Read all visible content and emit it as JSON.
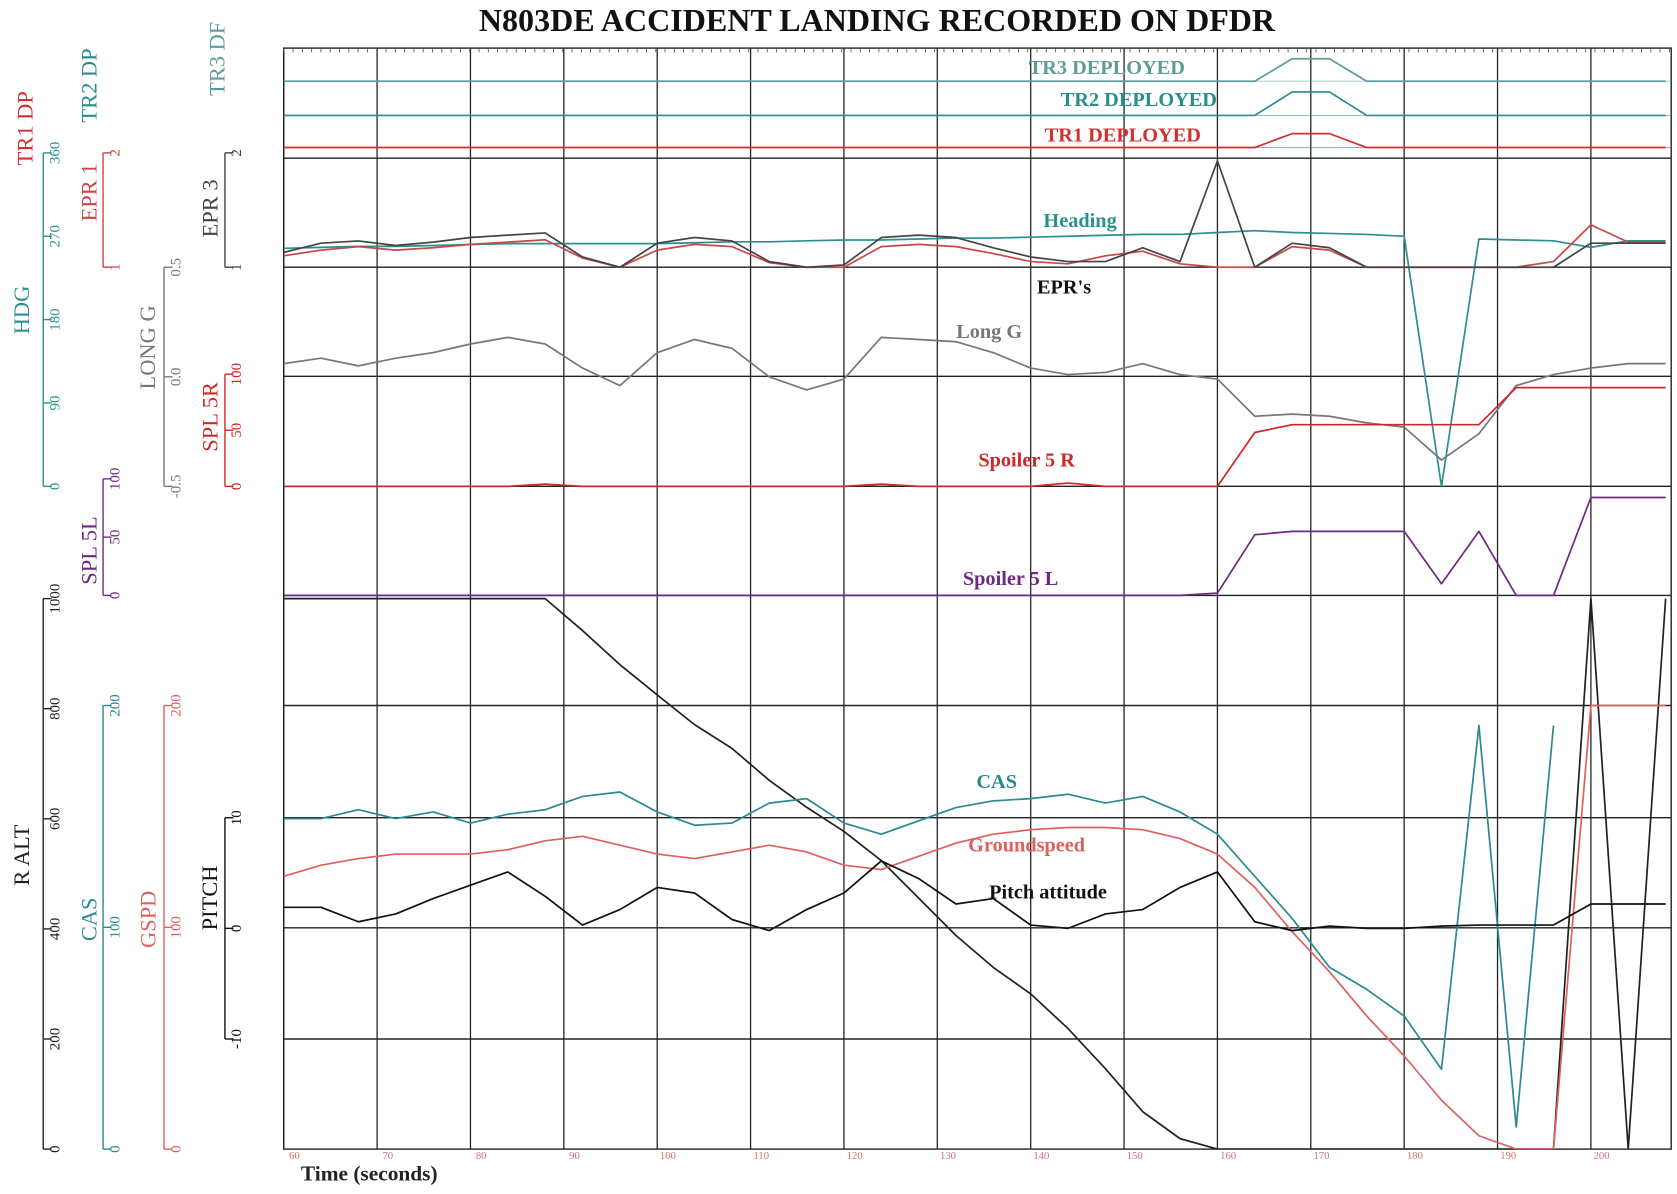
{
  "chart_data": {
    "type": "line",
    "title": "N803DE ACCIDENT LANDING RECORDED ON DFDR",
    "xlabel": "Time (seconds)",
    "xlim": [
      60,
      208.6
    ],
    "xticks": [
      60,
      70,
      80,
      90,
      100,
      110,
      120,
      130,
      140,
      150,
      160,
      170,
      180,
      190,
      200
    ],
    "grid": true,
    "annotations": [
      "EPR's"
    ],
    "x": [
      60,
      64,
      68,
      72,
      76,
      80,
      84,
      88,
      92,
      96,
      100,
      104,
      108,
      112,
      116,
      120,
      124,
      128,
      132,
      136,
      140,
      144,
      148,
      152,
      156,
      160,
      164,
      168,
      172,
      176,
      180,
      184,
      188,
      192,
      196,
      200,
      204,
      208
    ],
    "series": [
      {
        "name": "TR3 DEPLOYED",
        "axis_label": "TR3 DF",
        "color": "#5e9c9c",
        "ylim": [
          0,
          1
        ],
        "values": [
          0,
          0,
          0,
          0,
          0,
          0,
          0,
          0,
          0,
          0,
          0,
          0,
          0,
          0,
          0,
          0,
          0,
          0,
          0,
          0,
          0,
          0,
          0,
          0,
          0,
          0,
          0,
          1,
          1,
          0,
          0,
          0,
          0,
          0,
          0,
          0,
          0,
          0
        ]
      },
      {
        "name": "TR2 DEPLOYED",
        "axis_label": "TR2 DP",
        "color": "#2a8c8c",
        "ylim": [
          0,
          1
        ],
        "values": [
          0,
          0,
          0,
          0,
          0,
          0,
          0,
          0,
          0,
          0,
          0,
          0,
          0,
          0,
          0,
          0,
          0,
          0,
          0,
          0,
          0,
          0,
          0,
          0,
          0,
          0,
          0,
          1,
          1,
          0,
          0,
          0,
          0,
          0,
          0,
          0,
          0,
          0
        ]
      },
      {
        "name": "TR1 DEPLOYED",
        "axis_label": "TR1 DP",
        "color": "#d32f2f",
        "ylim": [
          0,
          1
        ],
        "values": [
          0,
          0,
          0,
          0,
          0,
          0,
          0,
          0,
          0,
          0,
          0,
          0,
          0,
          0,
          0,
          0,
          0,
          0,
          0,
          0,
          0,
          0,
          0,
          0,
          0,
          0,
          0,
          1,
          1,
          0,
          0,
          0,
          0,
          0,
          0,
          0,
          0,
          0
        ]
      },
      {
        "name": "Heading",
        "axis_label": "HDG",
        "color": "#2a9090",
        "ylim": [
          0,
          360
        ],
        "yticks": [
          0,
          90,
          180,
          270,
          360
        ],
        "values": [
          257,
          258,
          259,
          259,
          260,
          261,
          262,
          262,
          262,
          262,
          262,
          263,
          264,
          264,
          265,
          266,
          266,
          267,
          268,
          268,
          269,
          270,
          271,
          272,
          272,
          274,
          276,
          274,
          273,
          272,
          270,
          0,
          267,
          266,
          265,
          258,
          265,
          265
        ]
      },
      {
        "axis_label": "EPR 1",
        "color": "#c84848",
        "ylim": [
          1,
          2
        ],
        "yticks": [
          1,
          2
        ],
        "values": [
          1.1,
          1.15,
          1.18,
          1.15,
          1.17,
          1.2,
          1.22,
          1.24,
          1.08,
          1.0,
          1.15,
          1.2,
          1.18,
          1.04,
          1.0,
          1.0,
          1.18,
          1.2,
          1.18,
          1.12,
          1.05,
          1.03,
          1.1,
          1.14,
          1.03,
          1.0,
          1.0,
          1.18,
          1.15,
          1.0,
          1.0,
          1.0,
          1.0,
          1.0,
          1.05,
          1.37,
          1.22,
          1.22
        ]
      },
      {
        "axis_label": "EPR 3",
        "color": "#444444",
        "ylim": [
          1,
          2
        ],
        "yticks": [
          1,
          2
        ],
        "values": [
          1.13,
          1.21,
          1.23,
          1.19,
          1.22,
          1.26,
          1.28,
          1.3,
          1.09,
          1.0,
          1.21,
          1.26,
          1.23,
          1.05,
          1.0,
          1.02,
          1.26,
          1.28,
          1.26,
          1.17,
          1.09,
          1.05,
          1.05,
          1.17,
          1.05,
          1.93,
          1.0,
          1.21,
          1.17,
          1.0,
          1.0,
          1.0,
          1.0,
          1.0,
          1.0,
          1.21,
          1.21,
          1.21
        ]
      },
      {
        "name": "Long G",
        "axis_label": "LONG G",
        "color": "#777777",
        "ylim": [
          -0.5,
          0.5
        ],
        "yticks": [
          -0.5,
          {
            "value": 0,
            "label": "0.0"
          },
          0.5
        ],
        "values": [
          0.06,
          0.085,
          0.05,
          0.085,
          0.11,
          0.15,
          0.18,
          0.15,
          0.04,
          -0.04,
          0.11,
          0.17,
          0.13,
          0.0,
          -0.06,
          -0.01,
          0.18,
          0.17,
          0.16,
          0.11,
          0.04,
          0.01,
          0.02,
          0.06,
          0.01,
          -0.01,
          -0.18,
          -0.17,
          -0.18,
          -0.21,
          -0.23,
          -0.38,
          -0.26,
          -0.04,
          0.01,
          0.04,
          0.06,
          0.06
        ]
      },
      {
        "name": "Spoiler 5 R",
        "axis_label": "SPL 5R",
        "color": "#d02828",
        "ylim": [
          0,
          100
        ],
        "yticks": [
          0,
          50,
          100
        ],
        "values": [
          0,
          0,
          0,
          0,
          0,
          0,
          0,
          2,
          0,
          0,
          0,
          0,
          0,
          0,
          0,
          0,
          2,
          0,
          0,
          0,
          0,
          3,
          0,
          0,
          0,
          0,
          48,
          55,
          55,
          55,
          55,
          55,
          55,
          88,
          88,
          88,
          88,
          88
        ]
      },
      {
        "name": "Spoiler 5 L",
        "axis_label": "SPL 5L",
        "color": "#6e2a80",
        "ylim": [
          0,
          100
        ],
        "yticks": [
          0,
          50,
          100
        ],
        "values": [
          0,
          0,
          0,
          0,
          0,
          0,
          0,
          0,
          0,
          0,
          0,
          0,
          0,
          0,
          0,
          0,
          0,
          0,
          0,
          0,
          0,
          0,
          0,
          0,
          0,
          2,
          52,
          55,
          55,
          55,
          55,
          10,
          55,
          0,
          0,
          84,
          84,
          84
        ]
      },
      {
        "axis_label": "R ALT",
        "color": "#222222",
        "ylim": [
          0,
          1000
        ],
        "yticks": [
          0,
          200,
          400,
          600,
          800,
          1000
        ],
        "values": [
          1000,
          1000,
          1000,
          1000,
          1000,
          1000,
          1000,
          1000,
          942,
          880,
          825,
          771,
          728,
          670,
          621,
          577,
          524,
          456,
          388,
          330,
          282,
          219,
          146,
          68,
          19,
          0,
          0,
          0,
          0,
          0,
          0,
          0,
          0,
          0,
          0,
          1000,
          0,
          1000
        ]
      },
      {
        "name": "CAS",
        "axis_label": "CAS",
        "color": "#2a8a90",
        "ylim": [
          0,
          200
        ],
        "yticks": [
          0,
          100,
          200
        ],
        "values": [
          149,
          149,
          153,
          149,
          152,
          147,
          151,
          153,
          159,
          161,
          152,
          146,
          147,
          156,
          158,
          147,
          142,
          148,
          154,
          157,
          158,
          160,
          156,
          159,
          152,
          142,
          123,
          104,
          82,
          72,
          60,
          36,
          191,
          10,
          191,
          null,
          null,
          null
        ]
      },
      {
        "name": "Groundspeed",
        "axis_label": "GSPD",
        "color": "#e06060",
        "ylim": [
          0,
          200
        ],
        "yticks": [
          0,
          100,
          200
        ],
        "values": [
          123,
          128,
          131,
          133,
          133,
          133,
          135,
          139,
          141,
          137,
          133,
          131,
          134,
          137,
          134,
          128,
          126,
          132,
          138,
          142,
          144,
          145,
          145,
          144,
          140,
          133,
          118,
          98,
          80,
          60,
          42,
          22,
          6,
          0,
          0,
          200,
          200,
          200
        ]
      },
      {
        "name": "Pitch attitude",
        "axis_label": "PITCH",
        "color": "#111111",
        "ylim": [
          -10,
          10
        ],
        "yticks": [
          -10,
          0,
          10
        ],
        "values": [
          1.9,
          1.9,
          0.6,
          1.3,
          2.7,
          3.9,
          5.1,
          2.9,
          0.3,
          1.7,
          3.7,
          3.2,
          0.8,
          -0.2,
          1.7,
          3.2,
          6.1,
          4.5,
          2.2,
          2.7,
          0.3,
          0,
          1.3,
          1.7,
          3.7,
          5.1,
          0.6,
          -0.2,
          0.2,
          0,
          0,
          0.2,
          0.3,
          0.3,
          0.3,
          2.2,
          2.2,
          2.2
        ]
      }
    ]
  }
}
